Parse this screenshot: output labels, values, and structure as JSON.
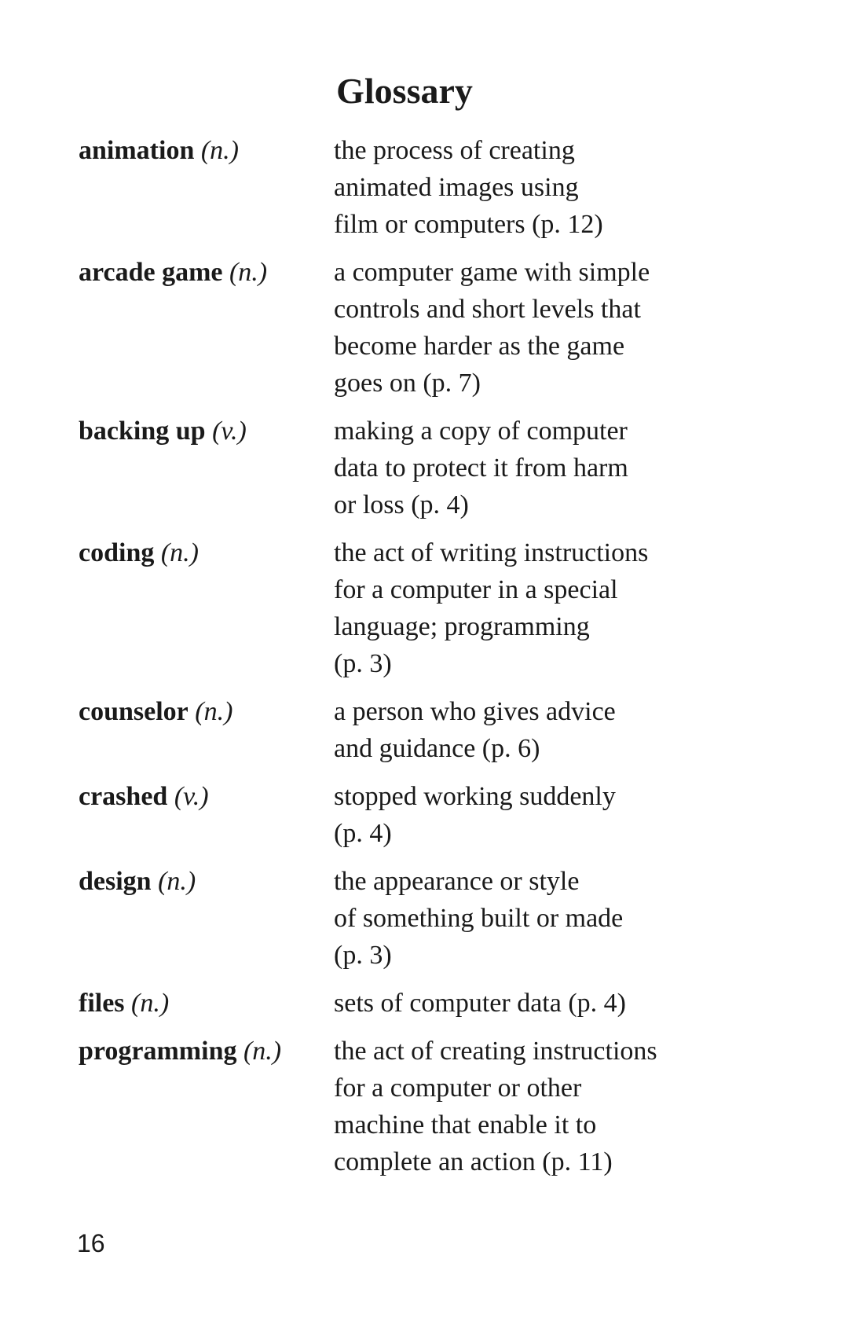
{
  "page": {
    "title": "Glossary",
    "page_number": "16"
  },
  "entries": [
    {
      "term": "animation",
      "pos": "(n.)",
      "lines": [
        "the process of creating",
        "animated images using",
        "film or computers (p. 12)"
      ]
    },
    {
      "term": "arcade game",
      "pos": "(n.)",
      "lines": [
        "a computer game with simple",
        "controls and short levels that",
        "become harder as the game",
        "goes on (p. 7)"
      ]
    },
    {
      "term": "backing up",
      "pos": "(v.)",
      "lines": [
        "making a copy of computer",
        "data to protect it from harm",
        "or loss (p. 4)"
      ]
    },
    {
      "term": "coding",
      "pos": "(n.)",
      "lines": [
        "the act of writing instructions",
        "for a computer in a special",
        "language; programming",
        "(p. 3)"
      ]
    },
    {
      "term": "counselor",
      "pos": "(n.)",
      "lines": [
        "a person who gives advice",
        "and guidance (p. 6)"
      ]
    },
    {
      "term": "crashed",
      "pos": "(v.)",
      "lines": [
        "stopped working suddenly",
        "(p. 4)"
      ]
    },
    {
      "term": "design",
      "pos": "(n.)",
      "lines": [
        "the appearance or style",
        "of something built or made",
        "(p. 3)"
      ]
    },
    {
      "term": "files",
      "pos": "(n.)",
      "lines": [
        "sets of computer data (p. 4)"
      ]
    },
    {
      "term": "programming",
      "pos": "(n.)",
      "lines": [
        "the act of creating instructions",
        "for a computer or other",
        "machine that enable it to",
        "complete an action (p. 11)"
      ]
    }
  ]
}
